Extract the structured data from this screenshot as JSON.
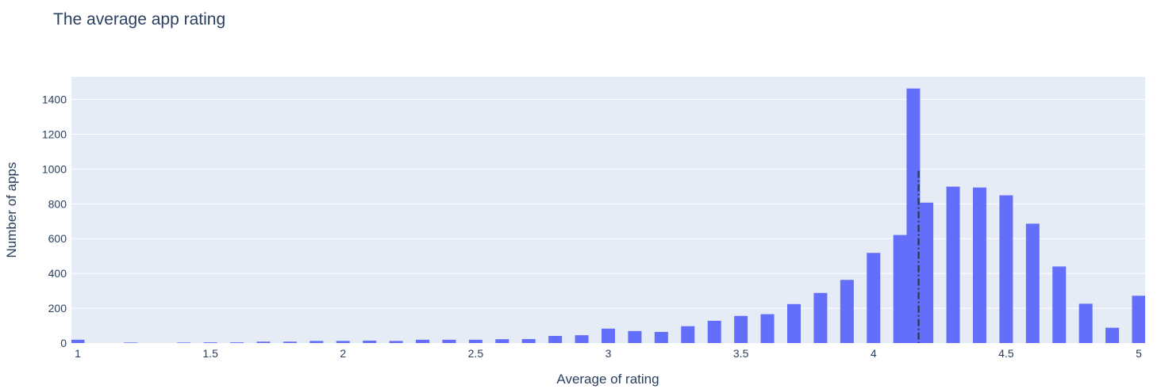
{
  "chart_data": {
    "type": "bar",
    "title": "The average app rating",
    "xlabel": "Average of rating",
    "ylabel": "Number of apps",
    "xlim": [
      1,
      5
    ],
    "ylim": [
      0,
      1530
    ],
    "x_ticks": [
      {
        "value": 1,
        "label": "1"
      },
      {
        "value": 1.5,
        "label": "1.5"
      },
      {
        "value": 2,
        "label": "2"
      },
      {
        "value": 2.5,
        "label": "2.5"
      },
      {
        "value": 3,
        "label": "3"
      },
      {
        "value": 3.5,
        "label": "3.5"
      },
      {
        "value": 4,
        "label": "4"
      },
      {
        "value": 4.5,
        "label": "4.5"
      },
      {
        "value": 5,
        "label": "5"
      }
    ],
    "y_ticks": [
      {
        "value": 0,
        "label": "0"
      },
      {
        "value": 200,
        "label": "200"
      },
      {
        "value": 400,
        "label": "400"
      },
      {
        "value": 600,
        "label": "600"
      },
      {
        "value": 800,
        "label": "800"
      },
      {
        "value": 1000,
        "label": "1000"
      },
      {
        "value": 1200,
        "label": "1200"
      },
      {
        "value": 1400,
        "label": "1400"
      }
    ],
    "grid": true,
    "bar_color": "#636efa",
    "plot_background": "#e5ecf6",
    "mean_line": {
      "x": 4.17,
      "y_top": 990,
      "color": "#2a3f5f"
    },
    "x": [
      1.0,
      1.2,
      1.4,
      1.5,
      1.6,
      1.7,
      1.8,
      1.9,
      2.0,
      2.1,
      2.2,
      2.3,
      2.4,
      2.5,
      2.6,
      2.7,
      2.8,
      2.9,
      3.0,
      3.1,
      3.2,
      3.3,
      3.4,
      3.5,
      3.6,
      3.7,
      3.8,
      3.9,
      4.0,
      4.1,
      4.15,
      4.2,
      4.3,
      4.4,
      4.5,
      4.6,
      4.7,
      4.8,
      4.9,
      5.0
    ],
    "values": [
      19,
      3,
      3,
      4,
      4,
      8,
      8,
      12,
      12,
      14,
      12,
      19,
      19,
      19,
      22,
      23,
      41,
      45,
      83,
      69,
      64,
      97,
      128,
      156,
      166,
      224,
      288,
      363,
      518,
      621,
      1463,
      807,
      899,
      894,
      849,
      686,
      440,
      226,
      88,
      272
    ]
  }
}
